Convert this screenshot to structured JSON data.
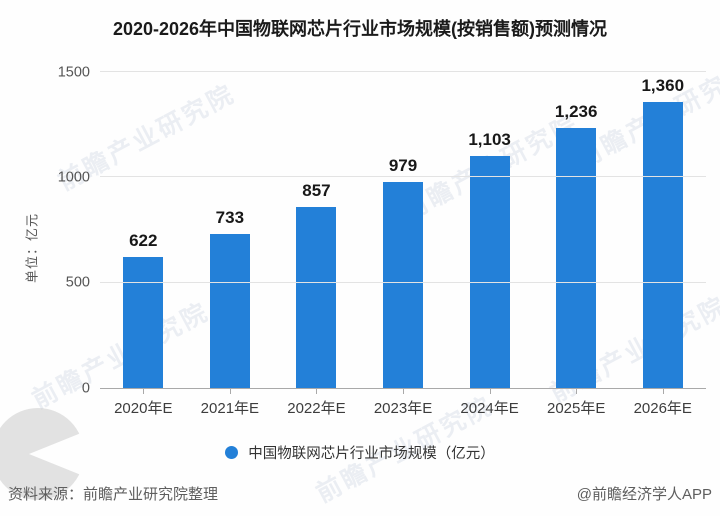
{
  "title": "2020-2026年中国物联网芯片行业市场规模(按销售额)预测情况",
  "chart_data": {
    "type": "bar",
    "title": "2020-2026年中国物联网芯片行业市场规模(按销售额)预测情况",
    "categories": [
      "2020年E",
      "2021年E",
      "2022年E",
      "2023年E",
      "2024年E",
      "2025年E",
      "2026年E"
    ],
    "values": [
      622,
      733,
      857,
      979,
      1103,
      1236,
      1360
    ],
    "value_labels": [
      "622",
      "733",
      "857",
      "979",
      "1,103",
      "1,236",
      "1,360"
    ],
    "xlabel": "",
    "ylabel": "单位：亿元",
    "ylim": [
      0,
      1500
    ],
    "yticks": [
      0,
      500,
      1000,
      1500
    ],
    "grid": true,
    "legend_position": "bottom",
    "bar_color": "#2380d8",
    "grid_color": "#e3e3e3",
    "axis_color": "#a9a9a9"
  },
  "legend": {
    "label": "中国物联网芯片行业市场规模（亿元）",
    "dot_color": "#2380d8"
  },
  "footer": {
    "source": "资料来源：前瞻产业研究院整理",
    "credit": "@前瞻经济学人APP"
  },
  "watermark": {
    "text": "前瞻产业研究院"
  }
}
